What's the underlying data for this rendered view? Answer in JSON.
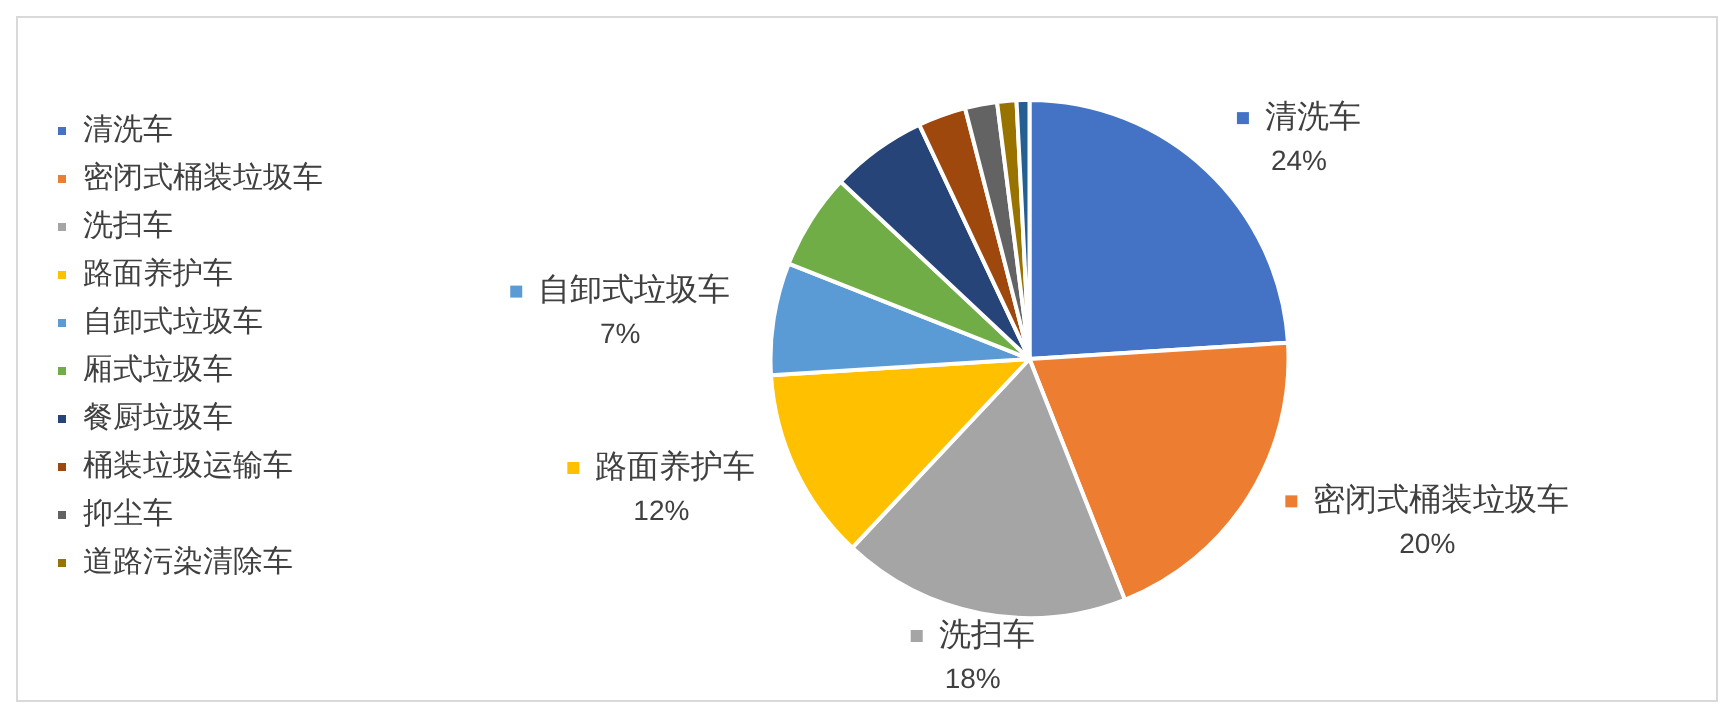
{
  "chart_data": {
    "type": "pie",
    "categories": [
      "清洗车",
      "密闭式桶装垃圾车",
      "洗扫车",
      "路面养护车",
      "自卸式垃圾车",
      "厢式垃圾车",
      "餐厨垃圾车",
      "桶装垃圾运输车",
      "抑尘车",
      "道路污染清除车",
      null
    ],
    "values": [
      24,
      20,
      18,
      12,
      7,
      6,
      6,
      3,
      2,
      1.2,
      0.8
    ],
    "colors": [
      "#4472c4",
      "#ed7d31",
      "#a5a5a5",
      "#ffc000",
      "#5b9bd5",
      "#70ad47",
      "#264478",
      "#9e480e",
      "#636363",
      "#997300",
      "#255e91"
    ],
    "value_labels": [
      "24%",
      "20%",
      "18%",
      "12%",
      "7%",
      null,
      null,
      null,
      null,
      null,
      null
    ],
    "legend": "left"
  }
}
